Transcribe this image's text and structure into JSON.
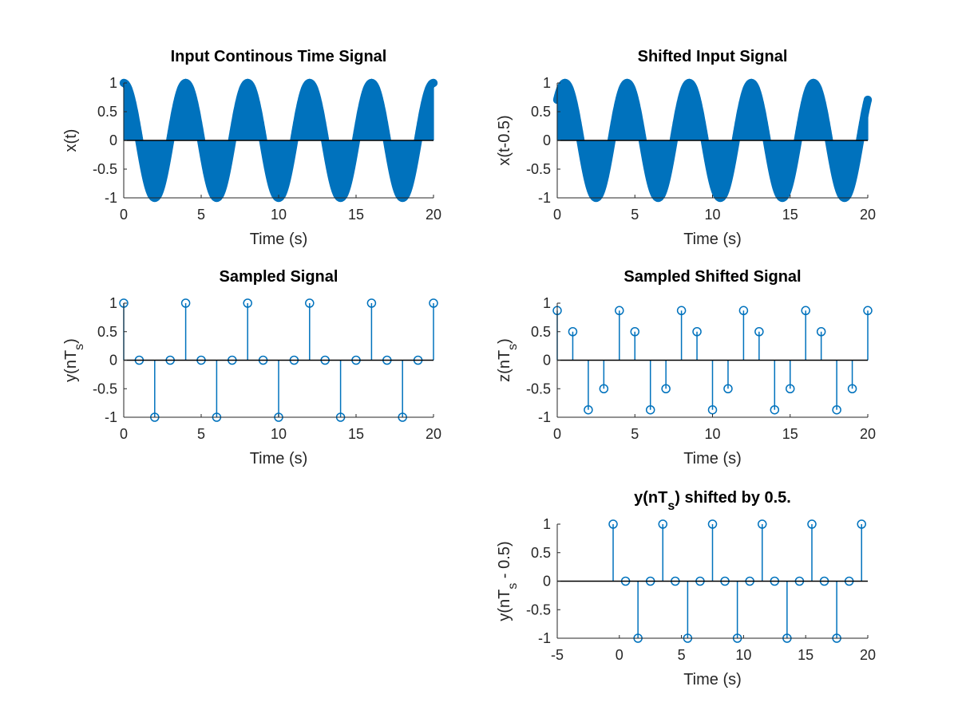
{
  "chart_data": [
    {
      "id": "p1",
      "type": "stem",
      "title": [
        {
          "t": "Input Continous Time Signal"
        }
      ],
      "xlabel": [
        {
          "t": "Time (s)"
        }
      ],
      "ylabel": [
        {
          "t": "x(t)"
        }
      ],
      "xlim": [
        0,
        20
      ],
      "ylim": [
        -1,
        1
      ],
      "xticks": [
        0,
        5,
        10,
        15,
        20
      ],
      "yticks": [
        -1,
        -0.5,
        0,
        0.5,
        1
      ],
      "series": [
        {
          "function": "cos(pi*t/2)",
          "x_range": [
            0,
            20
          ],
          "step": 0.01,
          "dense": true
        }
      ]
    },
    {
      "id": "p2",
      "type": "stem",
      "title": [
        {
          "t": "Shifted Input Signal"
        }
      ],
      "xlabel": [
        {
          "t": "Time (s)"
        }
      ],
      "ylabel": [
        {
          "t": "x(t-0.5)"
        }
      ],
      "xlim": [
        0,
        20
      ],
      "ylim": [
        -1,
        1
      ],
      "xticks": [
        0,
        5,
        10,
        15,
        20
      ],
      "yticks": [
        -1,
        -0.5,
        0,
        0.5,
        1
      ],
      "series": [
        {
          "function": "cos(pi*(t-0.5)/2)",
          "x_range": [
            0,
            20
          ],
          "step": 0.01,
          "dense": true
        }
      ]
    },
    {
      "id": "p3",
      "type": "stem",
      "title": [
        {
          "t": "Sampled Signal"
        }
      ],
      "xlabel": [
        {
          "t": "Time (s)"
        }
      ],
      "ylabel": [
        {
          "t": "y(nT"
        },
        {
          "t": "s",
          "sub": true
        },
        {
          "t": ")"
        }
      ],
      "xlim": [
        0,
        20
      ],
      "ylim": [
        -1,
        1
      ],
      "xticks": [
        0,
        5,
        10,
        15,
        20
      ],
      "yticks": [
        -1,
        -0.5,
        0,
        0.5,
        1
      ],
      "series": [
        {
          "x": [
            0,
            1,
            2,
            3,
            4,
            5,
            6,
            7,
            8,
            9,
            10,
            11,
            12,
            13,
            14,
            15,
            16,
            17,
            18,
            19,
            20
          ],
          "y": [
            1,
            0,
            -1,
            0,
            1,
            0,
            -1,
            0,
            1,
            0,
            -1,
            0,
            1,
            0,
            -1,
            0,
            1,
            0,
            -1,
            0,
            1
          ]
        }
      ]
    },
    {
      "id": "p4",
      "type": "stem",
      "title": [
        {
          "t": "Sampled Shifted Signal"
        }
      ],
      "xlabel": [
        {
          "t": "Time (s)"
        }
      ],
      "ylabel": [
        {
          "t": "z(nT"
        },
        {
          "t": "s",
          "sub": true
        },
        {
          "t": ")"
        }
      ],
      "xlim": [
        0,
        20
      ],
      "ylim": [
        -1,
        1
      ],
      "xticks": [
        0,
        5,
        10,
        15,
        20
      ],
      "yticks": [
        -1,
        -0.5,
        0,
        0.5,
        1
      ],
      "series": [
        {
          "x": [
            0,
            1,
            2,
            3,
            4,
            5,
            6,
            7,
            8,
            9,
            10,
            11,
            12,
            13,
            14,
            15,
            16,
            17,
            18,
            19,
            20
          ],
          "y": [
            0.87,
            0.5,
            -0.87,
            -0.5,
            0.87,
            0.5,
            -0.87,
            -0.5,
            0.87,
            0.5,
            -0.87,
            -0.5,
            0.87,
            0.5,
            -0.87,
            -0.5,
            0.87,
            0.5,
            -0.87,
            -0.5,
            0.87
          ]
        }
      ]
    },
    {
      "id": "p5",
      "type": "stem",
      "title": [
        {
          "t": "y(nT"
        },
        {
          "t": "s",
          "sub": true
        },
        {
          "t": ") shifted by 0.5."
        }
      ],
      "xlabel": [
        {
          "t": "Time (s)"
        }
      ],
      "ylabel": [
        {
          "t": "y(nT"
        },
        {
          "t": "s",
          "sub": true
        },
        {
          "t": " - 0.5)"
        }
      ],
      "xlim": [
        -5,
        20
      ],
      "ylim": [
        -1,
        1
      ],
      "xticks": [
        -5,
        0,
        5,
        10,
        15,
        20
      ],
      "yticks": [
        -1,
        -0.5,
        0,
        0.5,
        1
      ],
      "series": [
        {
          "x": [
            -0.5,
            0.5,
            1.5,
            2.5,
            3.5,
            4.5,
            5.5,
            6.5,
            7.5,
            8.5,
            9.5,
            10.5,
            11.5,
            12.5,
            13.5,
            14.5,
            15.5,
            16.5,
            17.5,
            18.5,
            19.5
          ],
          "y": [
            1,
            0,
            -1,
            0,
            1,
            0,
            -1,
            0,
            1,
            0,
            -1,
            0,
            1,
            0,
            -1,
            0,
            1,
            0,
            -1,
            0,
            1
          ]
        }
      ]
    }
  ],
  "colors": {
    "series": "#0072bd",
    "axis": "#262626",
    "zero_line": "#000000"
  }
}
